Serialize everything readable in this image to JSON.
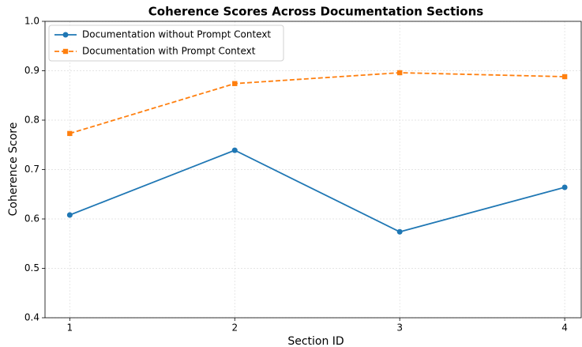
{
  "chart_data": {
    "type": "line",
    "title": "Coherence Scores Across Documentation Sections",
    "xlabel": "Section ID",
    "ylabel": "Coherence Score",
    "x": [
      1,
      2,
      3,
      4
    ],
    "series": [
      {
        "name": "Documentation without Prompt Context",
        "color": "#1f77b4",
        "marker": "circle",
        "dash": "solid",
        "values": [
          0.608,
          0.739,
          0.574,
          0.664
        ]
      },
      {
        "name": "Documentation with Prompt Context",
        "color": "#ff7f0e",
        "marker": "square",
        "dash": "dashed",
        "values": [
          0.773,
          0.874,
          0.896,
          0.888
        ]
      }
    ],
    "xlim": [
      0.85,
      4.1
    ],
    "xticks": [
      1,
      2,
      3,
      4
    ],
    "ylim": [
      0.4,
      1.0
    ],
    "yticks": [
      0.4,
      0.5,
      0.6,
      0.7,
      0.8,
      0.9,
      {
        "value": 1.0,
        "label": "1.0"
      }
    ],
    "grid": true,
    "legend": "upper left"
  }
}
